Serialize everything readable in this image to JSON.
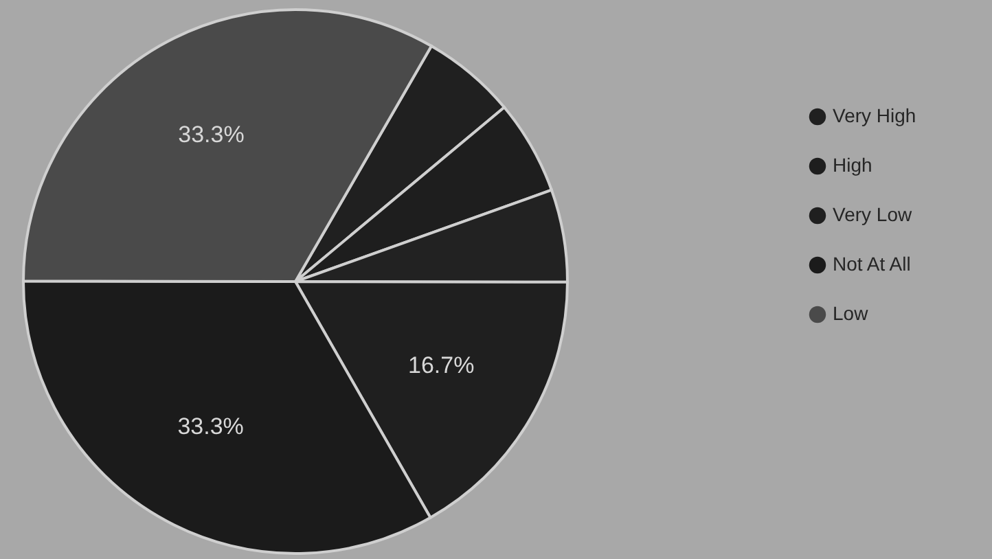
{
  "chart_data": {
    "type": "pie",
    "categories": [
      "Very High",
      "High",
      null,
      "Very Low",
      "Not At All",
      "Low"
    ],
    "values": [
      5.6,
      5.6,
      5.5,
      16.7,
      33.3,
      33.3
    ],
    "colors": [
      "#202020",
      "#1e1e1e",
      "#222222",
      "#1f1f1f",
      "#1b1b1b",
      "#4a4a4a"
    ],
    "value_labels": [
      null,
      null,
      null,
      "16.7%",
      "33.3%",
      "33.3%"
    ],
    "legend": "right"
  }
}
